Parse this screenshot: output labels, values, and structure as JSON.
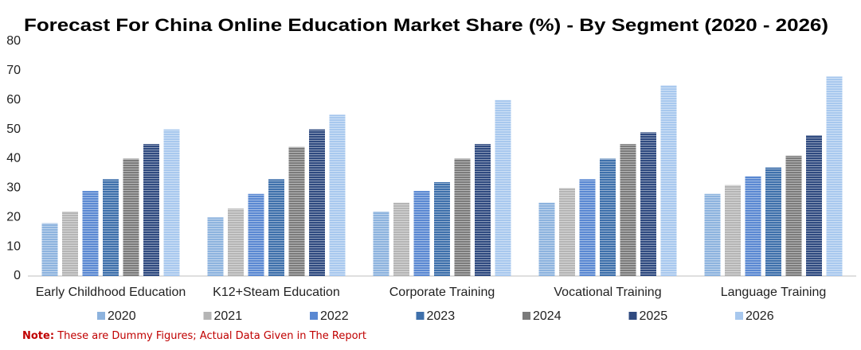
{
  "chart_data": {
    "type": "bar",
    "title": "Forecast For China Online Education Market Share (%) - By Segment (2020 - 2026)",
    "categories": [
      "Early Childhood Education",
      "K12+Steam Education",
      "Corporate Training",
      "Vocational Training",
      "Language Training"
    ],
    "series": [
      {
        "name": "2020",
        "color": "#8db3de",
        "values": [
          18,
          20,
          22,
          25,
          28
        ]
      },
      {
        "name": "2021",
        "color": "#b5b5b5",
        "values": [
          22,
          23,
          25,
          30,
          31
        ]
      },
      {
        "name": "2022",
        "color": "#5a88d2",
        "values": [
          29,
          28,
          29,
          33,
          34
        ]
      },
      {
        "name": "2023",
        "color": "#3e70ab",
        "values": [
          33,
          33,
          32,
          40,
          37
        ]
      },
      {
        "name": "2024",
        "color": "#7b7b7b",
        "values": [
          40,
          44,
          40,
          45,
          41
        ]
      },
      {
        "name": "2025",
        "color": "#2f4a80",
        "values": [
          45,
          50,
          45,
          49,
          48
        ]
      },
      {
        "name": "2026",
        "color": "#a8c8ee",
        "values": [
          50,
          55,
          60,
          65,
          68
        ]
      }
    ],
    "ylim": [
      0,
      80
    ],
    "yticks": [
      0,
      10,
      20,
      30,
      40,
      50,
      60,
      70,
      80
    ],
    "grid": false,
    "note_label": "Note:",
    "note": "These are Dummy Figures; Actual Data Given in The Report"
  }
}
